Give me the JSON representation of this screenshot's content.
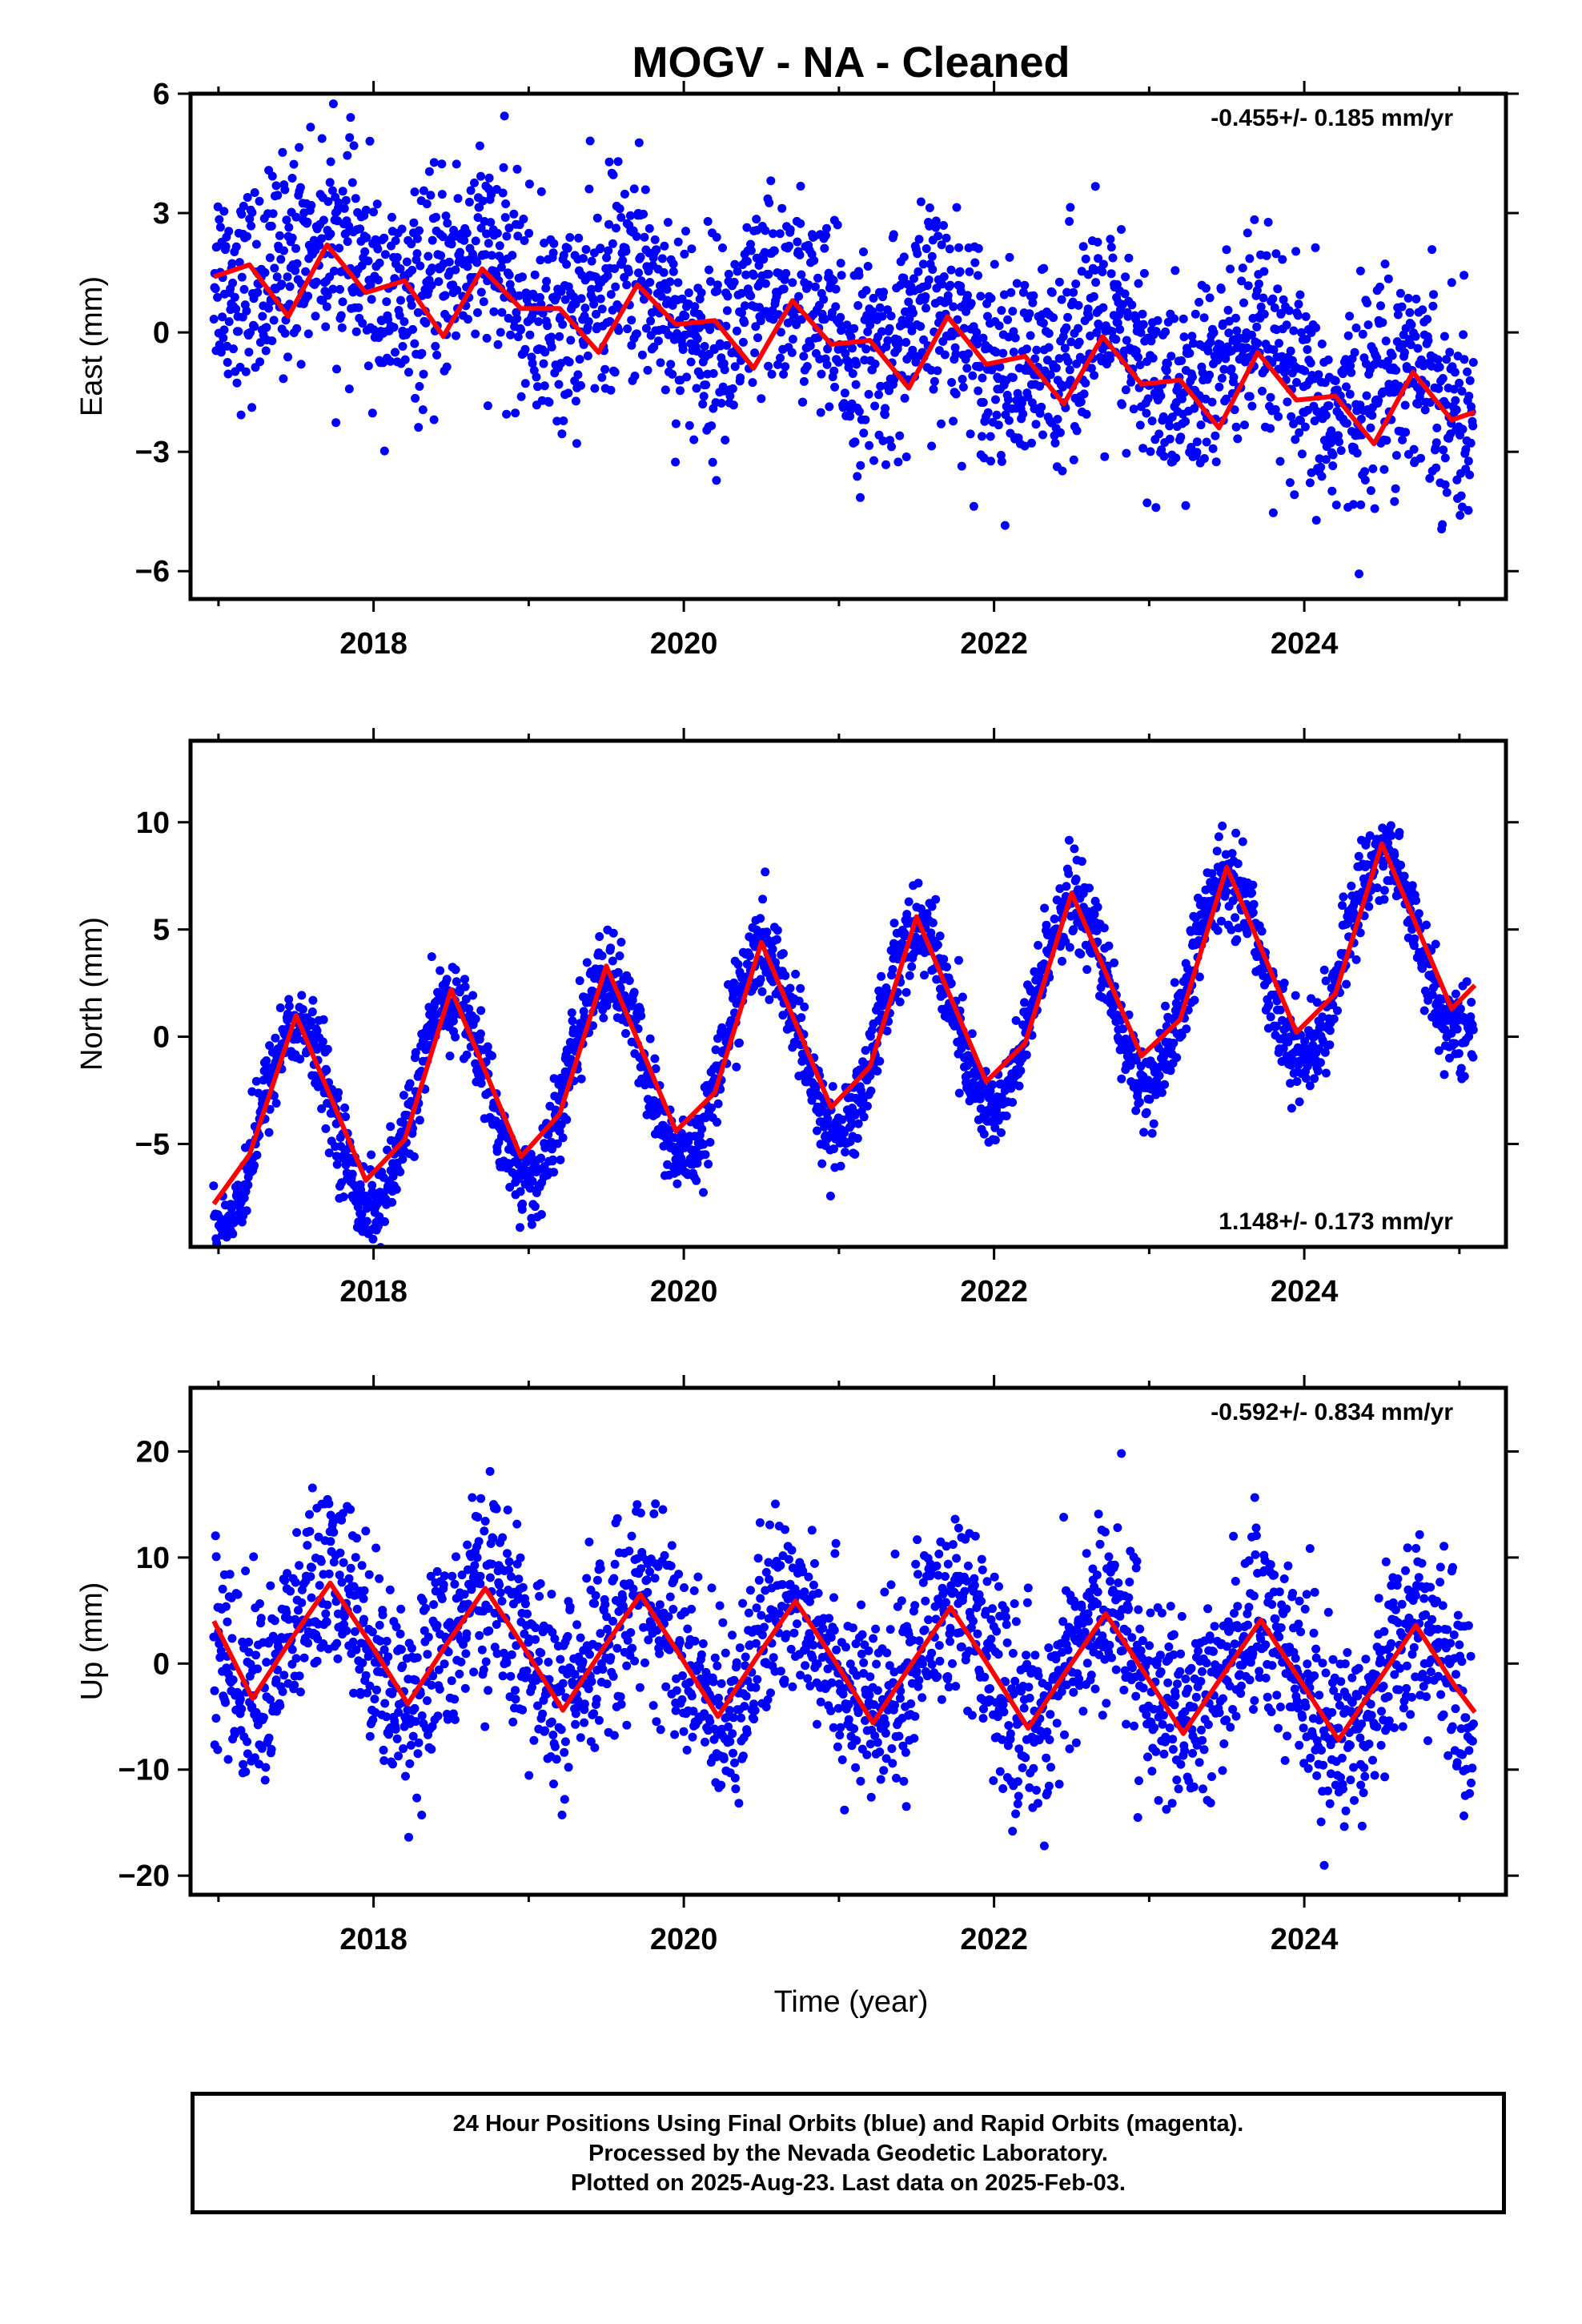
{
  "chart_data": {
    "type": "scatter",
    "title": "MOGV  - NA - Cleaned",
    "xlabel": "Time (year)",
    "xlim": [
      2016.82,
      2025.3
    ],
    "x_ticks": [
      2018,
      2020,
      2022,
      2024
    ],
    "x_tick_labels": [
      "2018",
      "2020",
      "2022",
      "2024"
    ],
    "series": [
      {
        "name": "Final Orbits",
        "color": "#0000ff"
      },
      {
        "name": "Model fit",
        "color": "#ff0000"
      }
    ],
    "panels": [
      {
        "id": "east",
        "ylabel": "East (mm)",
        "ylim": [
          -6.7,
          6.0
        ],
        "y_ticks": [
          -6,
          -3,
          0,
          3,
          6
        ],
        "y_tick_labels": [
          "−6",
          "−3",
          "0",
          "3",
          "6"
        ],
        "rate_text": "-0.455+/- 0.185 mm/yr",
        "rate_position": "top-right",
        "trend": {
          "slope_mm_per_yr": -0.455,
          "value_at_2021": 0.1
        },
        "annual_amplitude": 0.8,
        "annual_phase_peak": 2017.67,
        "scatter": 1.3,
        "fit": {
          "x": [
            2016.97,
            2017.2,
            2017.45,
            2017.7,
            2017.95,
            2018.2,
            2018.45,
            2018.7,
            2018.95,
            2019.2,
            2019.45,
            2019.7,
            2019.95,
            2020.2,
            2020.45,
            2020.7,
            2020.95,
            2021.2,
            2021.45,
            2021.7,
            2021.95,
            2022.2,
            2022.45,
            2022.7,
            2022.95,
            2023.2,
            2023.45,
            2023.7,
            2023.95,
            2024.2,
            2024.45,
            2024.7,
            2024.95,
            2025.1
          ],
          "y": [
            1.4,
            1.7,
            0.4,
            2.2,
            1.0,
            1.3,
            -0.1,
            1.6,
            0.6,
            0.6,
            -0.5,
            1.2,
            0.2,
            0.3,
            -0.9,
            0.8,
            -0.3,
            -0.2,
            -1.4,
            0.4,
            -0.8,
            -0.6,
            -1.8,
            -0.1,
            -1.3,
            -1.2,
            -2.4,
            -0.5,
            -1.7,
            -1.6,
            -2.8,
            -1.0,
            -2.2,
            -2.0
          ]
        }
      },
      {
        "id": "north",
        "ylabel": "North (mm)",
        "ylim": [
          -9.8,
          13.8
        ],
        "y_ticks": [
          -5,
          0,
          5,
          10
        ],
        "y_tick_labels": [
          "−5",
          "0",
          "5",
          "10"
        ],
        "rate_text": "1.148+/- 0.173 mm/yr",
        "rate_position": "bottom-right",
        "trend": {
          "slope_mm_per_yr": 1.148,
          "value_at_2021": 0.0
        },
        "annual_amplitude": 4.5,
        "annual_phase_peak": 2017.5,
        "scatter": 1.0,
        "fit": {
          "x": [
            2016.97,
            2017.2,
            2017.5,
            2017.95,
            2018.2,
            2018.5,
            2018.95,
            2019.2,
            2019.5,
            2019.95,
            2020.2,
            2020.5,
            2020.95,
            2021.2,
            2021.5,
            2021.95,
            2022.2,
            2022.5,
            2022.95,
            2023.2,
            2023.5,
            2023.95,
            2024.2,
            2024.5,
            2024.95,
            2025.1
          ],
          "y": [
            -7.8,
            -5.5,
            1.0,
            -6.7,
            -4.8,
            2.2,
            -5.6,
            -3.6,
            3.3,
            -4.4,
            -2.6,
            4.4,
            -3.3,
            -1.4,
            5.6,
            -2.1,
            -0.3,
            6.7,
            -0.9,
            0.8,
            7.9,
            0.2,
            2.0,
            9.0,
            1.3,
            2.4
          ]
        }
      },
      {
        "id": "up",
        "ylabel": "Up (mm)",
        "ylim": [
          -21.8,
          26.0
        ],
        "y_ticks": [
          -20,
          -10,
          0,
          10,
          20
        ],
        "y_tick_labels": [
          "−20",
          "−10",
          "0",
          "10",
          "20"
        ],
        "rate_text": "-0.592+/- 0.834 mm/yr",
        "rate_position": "top-right",
        "trend": {
          "slope_mm_per_yr": -0.592,
          "value_at_2021": 0.5
        },
        "annual_amplitude": 5.3,
        "annual_phase_peak": 2017.72,
        "scatter": 4.5,
        "fit": {
          "x": [
            2016.97,
            2017.22,
            2017.47,
            2017.72,
            2017.97,
            2018.22,
            2018.47,
            2018.72,
            2018.97,
            2019.22,
            2019.47,
            2019.72,
            2019.97,
            2020.22,
            2020.47,
            2020.72,
            2020.97,
            2021.22,
            2021.47,
            2021.72,
            2021.97,
            2022.22,
            2022.47,
            2022.72,
            2022.97,
            2023.22,
            2023.47,
            2023.72,
            2023.97,
            2024.22,
            2024.47,
            2024.72,
            2024.97,
            2025.1
          ],
          "y": [
            4.0,
            -3.3,
            2.3,
            7.6,
            2.1,
            -3.8,
            1.8,
            7.1,
            1.5,
            -4.4,
            1.2,
            6.5,
            0.9,
            -5.0,
            0.6,
            5.9,
            0.3,
            -5.6,
            0.0,
            5.3,
            -0.3,
            -6.1,
            -0.6,
            4.7,
            -0.9,
            -6.6,
            -1.2,
            4.1,
            -1.5,
            -7.2,
            -1.8,
            3.6,
            -2.1,
            -4.6
          ]
        }
      }
    ],
    "n_samples_per_panel": 2400,
    "footer_lines": [
      "24 Hour Positions Using Final Orbits (blue) and Rapid Orbits (magenta).",
      "Processed by the Nevada Geodetic Laboratory.",
      "Plotted on 2025-Aug-23. Last data on 2025-Feb-03."
    ]
  }
}
